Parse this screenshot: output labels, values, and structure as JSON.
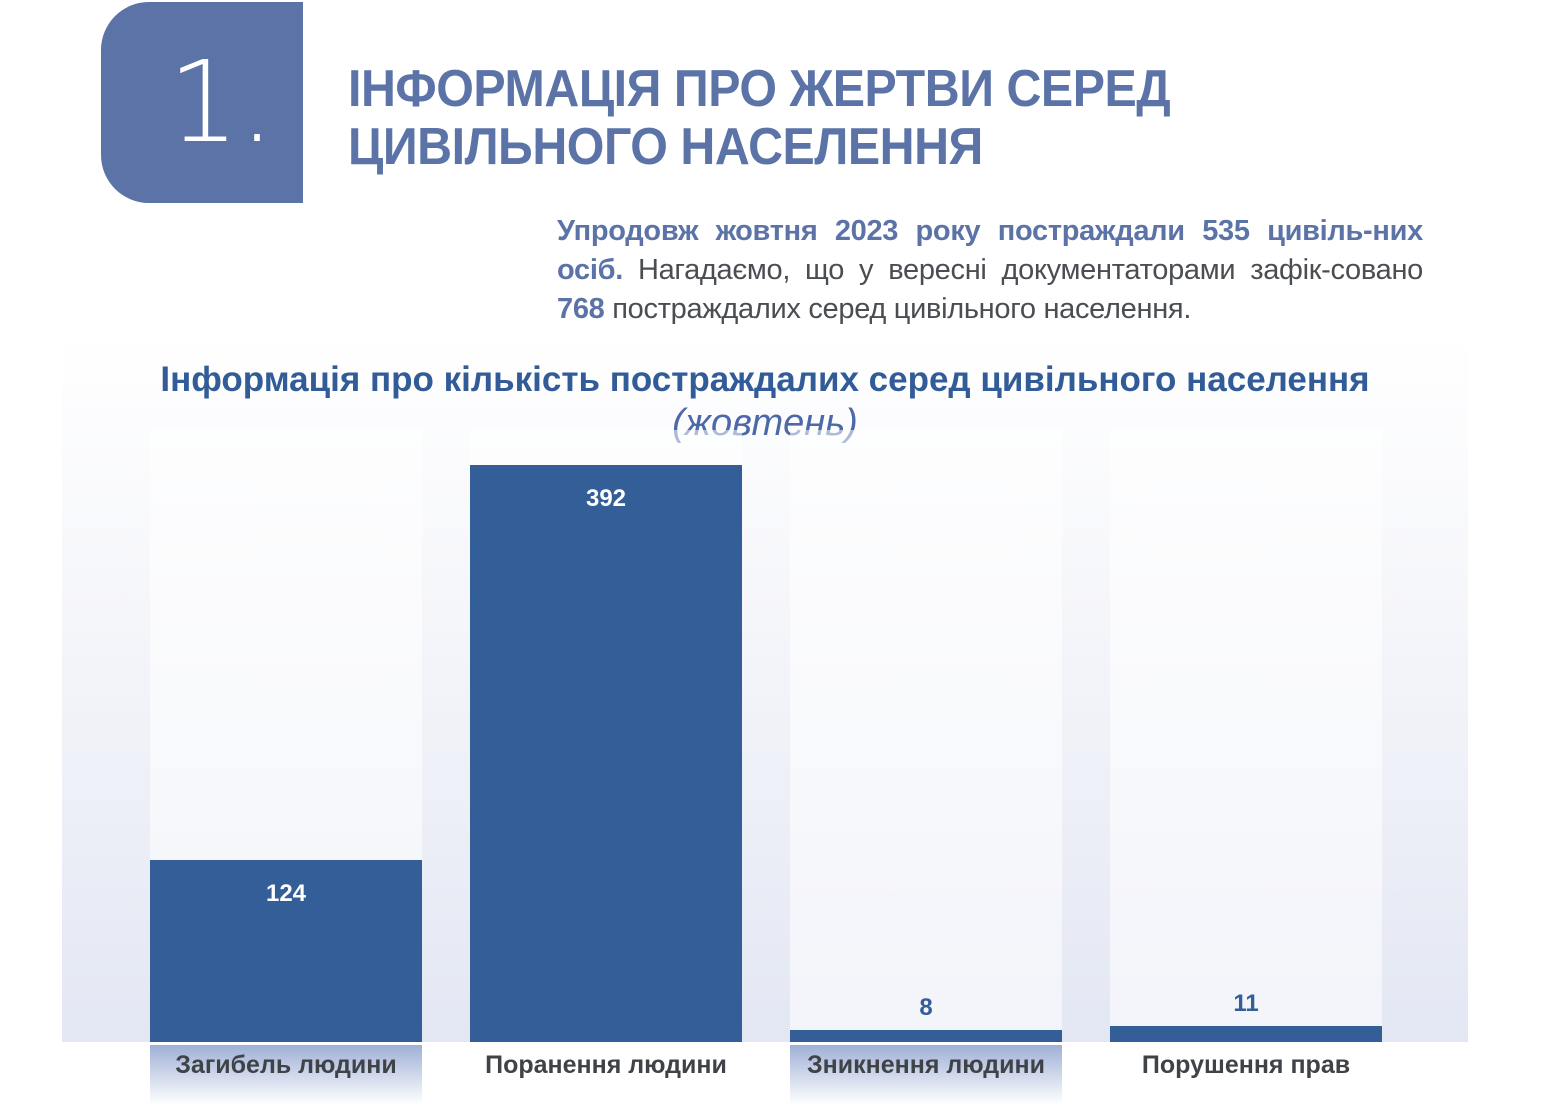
{
  "header": {
    "section_number": "1.",
    "title_line1": "ІНФОРМАЦІЯ ПРО ЖЕРТВИ СЕРЕД",
    "title_line2": "ЦИВІЛЬНОГО НАСЕЛЕННЯ"
  },
  "intro": {
    "bold1": "Упродовж жовтня 2023 року постраждали 535 цивіль-них осіб.",
    "text1": " Нагадаємо, що у вересні документаторами зафік-совано ",
    "bold2": "768",
    "text2": " постраждалих серед цивільного населення."
  },
  "chart_data": {
    "type": "bar",
    "title": "Інформація про кількість постраждалих серед цивільного населення",
    "subtitle": "(жовтень)",
    "categories": [
      "Загибель людини",
      "Поранення людини",
      "Зникнення людини",
      "Порушення прав"
    ],
    "values": [
      124,
      392,
      8,
      11
    ],
    "ylim": [
      0,
      416
    ],
    "xlabel": "",
    "ylabel": "",
    "colors": {
      "bar": "#335e98"
    }
  }
}
